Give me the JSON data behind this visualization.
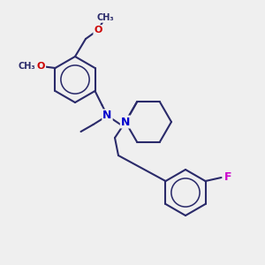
{
  "bg_color": "#efefef",
  "bond_color": "#2a2a6a",
  "atom_colors": {
    "N": "#0000cc",
    "O": "#cc0000",
    "F": "#cc00cc"
  },
  "bond_width": 1.5,
  "figsize": [
    3.0,
    3.0
  ],
  "dpi": 100,
  "xlim": [
    0,
    300
  ],
  "ylim": [
    0,
    300
  ]
}
